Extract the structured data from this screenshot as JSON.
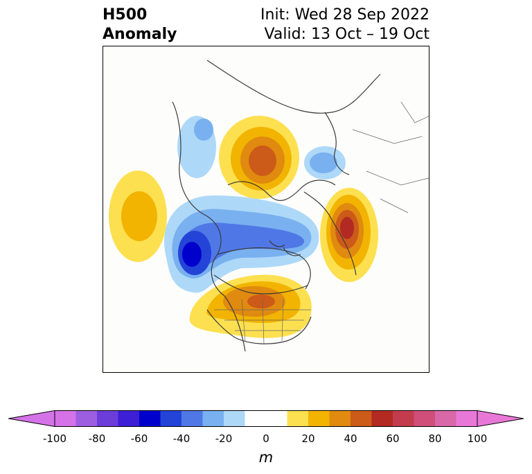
{
  "header": {
    "variable": "H500",
    "subtitle": "Anomaly",
    "init": "Init: Wed 28 Sep 2022",
    "valid": "Valid: 13 Oct – 19 Oct"
  },
  "colorbar": {
    "units": "m",
    "ticks": [
      "-100",
      "-80",
      "-60",
      "-40",
      "-20",
      "0",
      "20",
      "40",
      "60",
      "80",
      "100"
    ],
    "levels": [
      -100,
      -90,
      -80,
      -70,
      -60,
      -50,
      -40,
      -30,
      -20,
      -10,
      10,
      20,
      30,
      40,
      50,
      60,
      70,
      80,
      90,
      100
    ],
    "colors": [
      "#d572e8",
      "#9d5ee0",
      "#6c3dd9",
      "#3d1fd6",
      "#0000cc",
      "#2444d8",
      "#4f78e6",
      "#79b0f0",
      "#aed8f8",
      "#ffffff",
      "#fde050",
      "#f2b400",
      "#e08a10",
      "#cc5a18",
      "#b22a22",
      "#c23c4e",
      "#cf4e7a",
      "#d968a8",
      "#e878d8"
    ],
    "extend_min_color": "#d572e8",
    "extend_max_color": "#e878d8"
  }
}
